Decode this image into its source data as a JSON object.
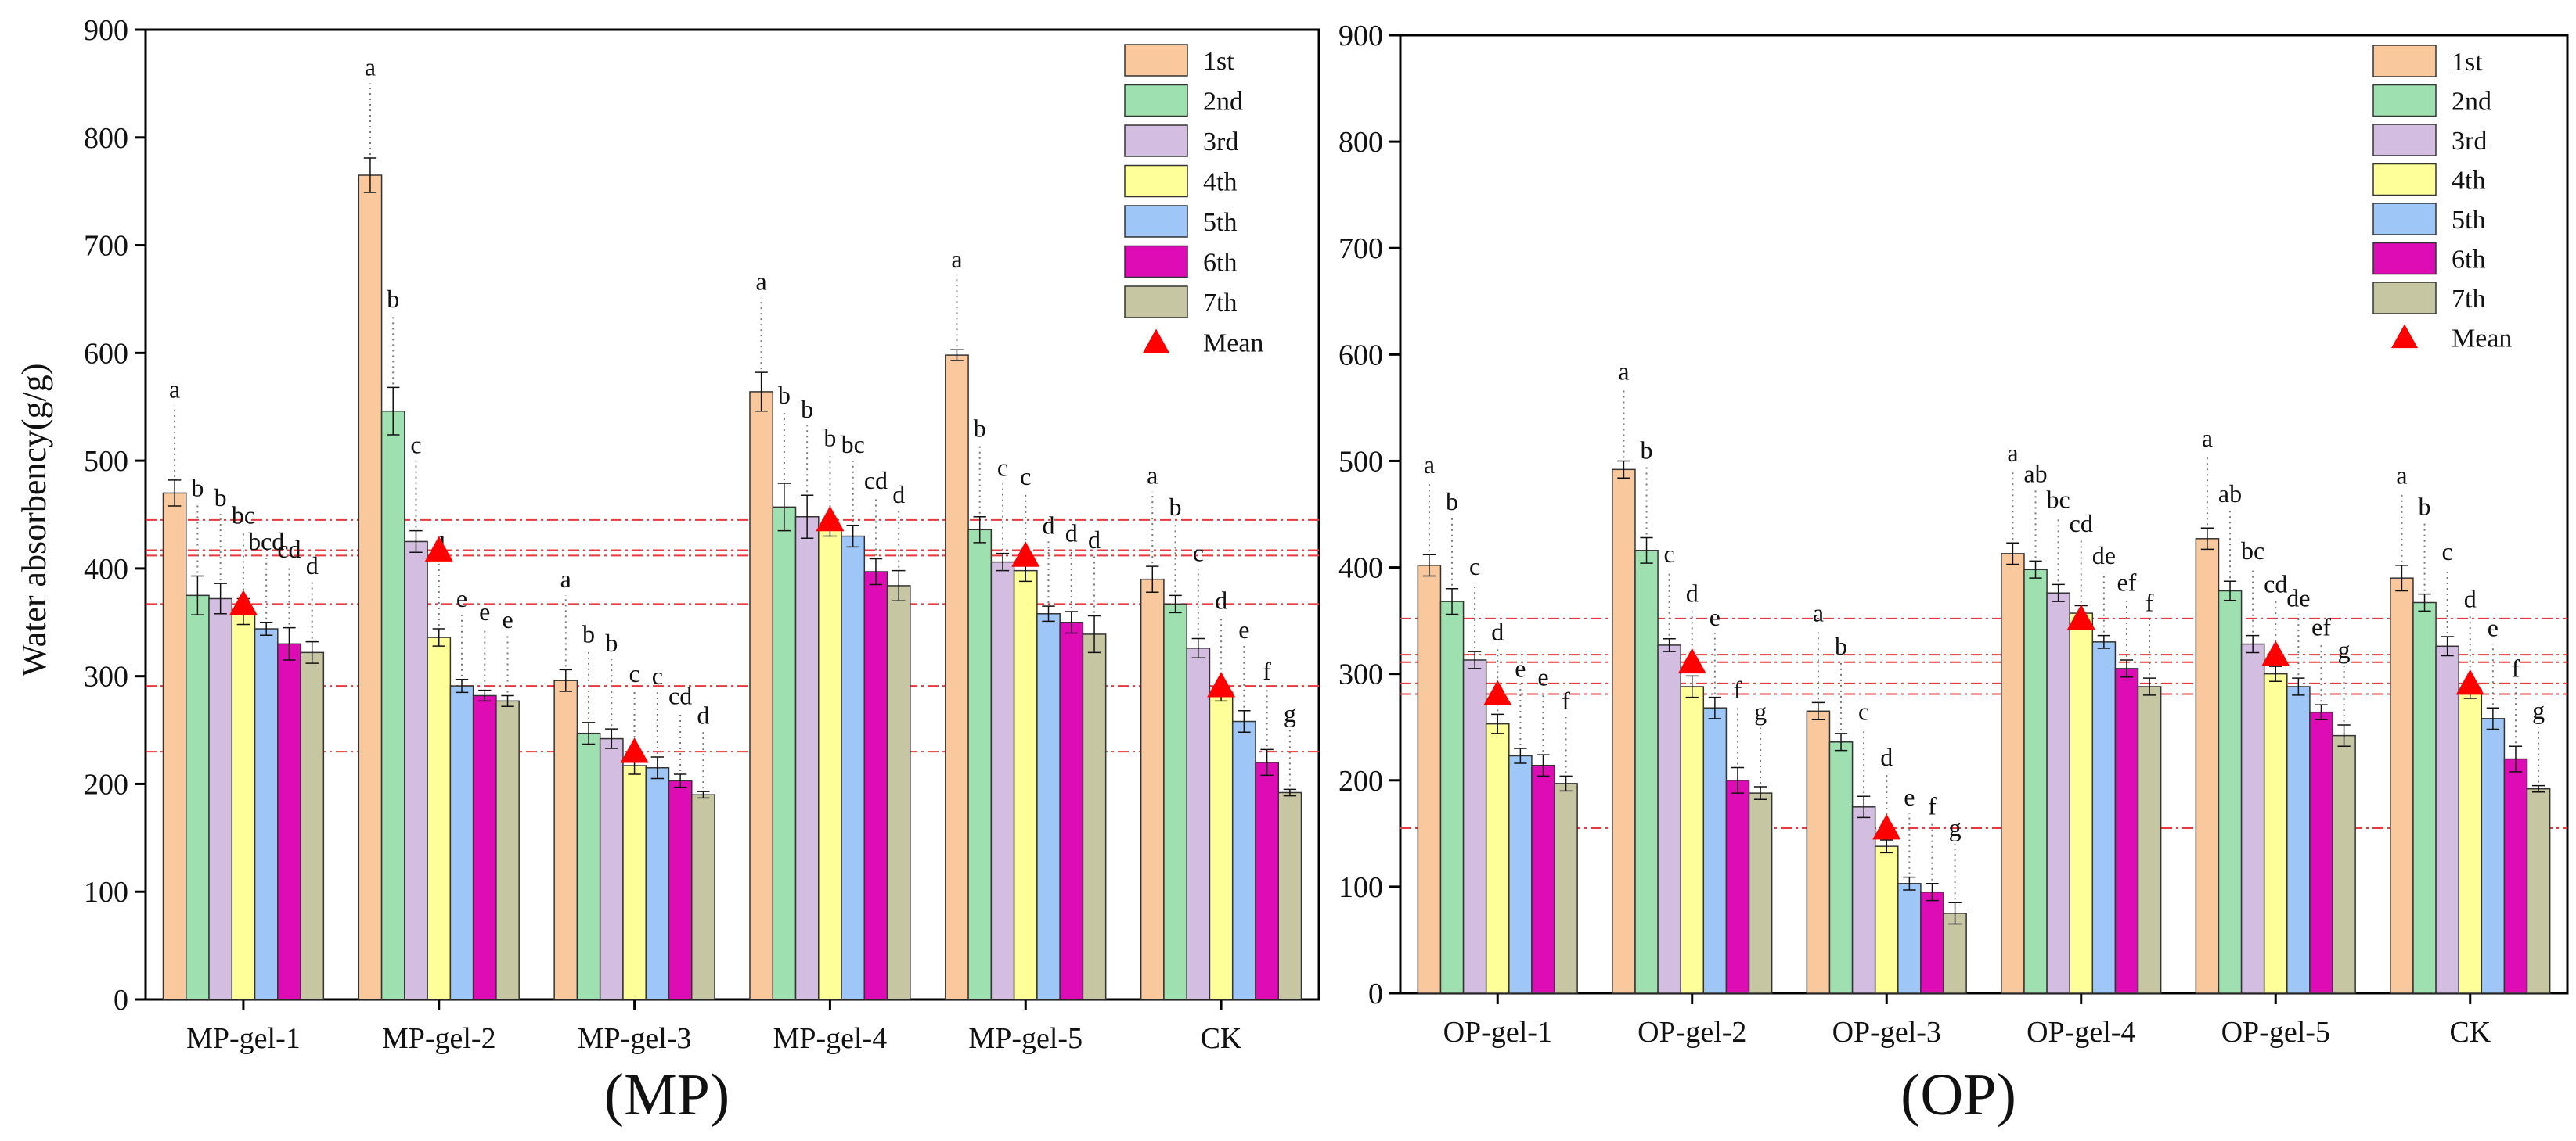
{
  "figure": {
    "y_axis_label": "Water absorbency(g/g)"
  },
  "styles": {
    "series_colors": [
      "#f9c99d",
      "#9fe0b0",
      "#d3bde0",
      "#ffff99",
      "#9ec7f7",
      "#dd0cb5",
      "#c6c6a2"
    ],
    "mean_color": "#ff0000",
    "mean_line_color": "#e8393f"
  },
  "chart_data": [
    {
      "type": "bar",
      "panel_label": "(MP)",
      "categories": [
        "MP-gel-1",
        "MP-gel-2",
        "MP-gel-3",
        "MP-gel-4",
        "MP-gel-5",
        "CK"
      ],
      "ylim": [
        0,
        900
      ],
      "yticks": [
        0,
        100,
        200,
        300,
        400,
        500,
        600,
        700,
        800,
        900
      ],
      "ylabel": "Water absorbency(g/g)",
      "legend_position": "top-right",
      "mean_label": "Mean",
      "series": [
        {
          "name": "1st",
          "values": [
            470,
            765,
            296,
            564,
            598,
            390
          ],
          "errors": [
            12,
            16,
            10,
            18,
            5,
            12
          ],
          "letters": [
            "a",
            "a",
            "a",
            "a",
            "a",
            "a"
          ]
        },
        {
          "name": "2nd",
          "values": [
            375,
            546,
            247,
            457,
            436,
            367
          ],
          "errors": [
            18,
            22,
            10,
            22,
            12,
            8
          ],
          "letters": [
            "b",
            "b",
            "b",
            "b",
            "b",
            "b"
          ]
        },
        {
          "name": "3rd",
          "values": [
            372,
            425,
            242,
            448,
            406,
            326
          ],
          "errors": [
            14,
            10,
            9,
            20,
            8,
            9
          ],
          "letters": [
            "b",
            "c",
            "b",
            "b",
            "c",
            "c"
          ]
        },
        {
          "name": "4th",
          "values": [
            360,
            336,
            217,
            437,
            398,
            285
          ],
          "errors": [
            12,
            8,
            8,
            7,
            10,
            8
          ],
          "letters": [
            "bc",
            "d",
            "c",
            "b",
            "c",
            "d"
          ]
        },
        {
          "name": "5th",
          "values": [
            344,
            291,
            215,
            430,
            358,
            258
          ],
          "errors": [
            6,
            6,
            10,
            10,
            7,
            10
          ],
          "letters": [
            "bcd",
            "e",
            "c",
            "bc",
            "d",
            "e"
          ]
        },
        {
          "name": "6th",
          "values": [
            330,
            282,
            203,
            397,
            350,
            220
          ],
          "errors": [
            15,
            5,
            6,
            12,
            10,
            12
          ],
          "letters": [
            "cd",
            "e",
            "cd",
            "cd",
            "d",
            "f"
          ]
        },
        {
          "name": "7th",
          "values": [
            322,
            277,
            190,
            384,
            339,
            192
          ],
          "errors": [
            10,
            5,
            3,
            14,
            17,
            3
          ],
          "letters": [
            "d",
            "e",
            "d",
            "d",
            "d",
            "g"
          ]
        }
      ],
      "means": [
        367,
        417,
        230,
        445,
        412,
        291
      ]
    },
    {
      "type": "bar",
      "panel_label": "(OP)",
      "categories": [
        "OP-gel-1",
        "OP-gel-2",
        "OP-gel-3",
        "OP-gel-4",
        "OP-gel-5",
        "CK"
      ],
      "ylim": [
        0,
        900
      ],
      "yticks": [
        0,
        100,
        200,
        300,
        400,
        500,
        600,
        700,
        800,
        900
      ],
      "ylabel": "",
      "legend_position": "top-right",
      "mean_label": "Mean",
      "series": [
        {
          "name": "1st",
          "values": [
            402,
            492,
            265,
            413,
            427,
            390
          ],
          "errors": [
            10,
            8,
            8,
            10,
            10,
            12
          ],
          "letters": [
            "a",
            "a",
            "a",
            "a",
            "a",
            "a"
          ]
        },
        {
          "name": "2nd",
          "values": [
            368,
            416,
            236,
            398,
            378,
            367
          ],
          "errors": [
            12,
            12,
            8,
            8,
            9,
            8
          ],
          "letters": [
            "b",
            "b",
            "b",
            "ab",
            "ab",
            "b"
          ]
        },
        {
          "name": "3rd",
          "values": [
            313,
            327,
            175,
            376,
            328,
            326
          ],
          "errors": [
            8,
            6,
            10,
            8,
            8,
            9
          ],
          "letters": [
            "c",
            "c",
            "c",
            "bc",
            "bc",
            "c"
          ]
        },
        {
          "name": "4th",
          "values": [
            253,
            288,
            138,
            357,
            300,
            285
          ],
          "errors": [
            9,
            10,
            6,
            7,
            7,
            8
          ],
          "letters": [
            "d",
            "d",
            "d",
            "cd",
            "cd",
            "d"
          ]
        },
        {
          "name": "5th",
          "values": [
            223,
            268,
            103,
            330,
            288,
            258
          ],
          "errors": [
            7,
            10,
            6,
            6,
            8,
            10
          ],
          "letters": [
            "e",
            "e",
            "e",
            "de",
            "de",
            "e"
          ]
        },
        {
          "name": "6th",
          "values": [
            214,
            200,
            95,
            305,
            264,
            220
          ],
          "errors": [
            10,
            12,
            8,
            8,
            7,
            12
          ],
          "letters": [
            "e",
            "f",
            "f",
            "ef",
            "ef",
            "f"
          ]
        },
        {
          "name": "7th",
          "values": [
            197,
            188,
            75,
            288,
            242,
            192
          ],
          "errors": [
            7,
            6,
            10,
            8,
            10,
            3
          ],
          "letters": [
            "f",
            "g",
            "g",
            "f",
            "g",
            "g"
          ]
        }
      ],
      "means": [
        281,
        311,
        155,
        352,
        318,
        291
      ]
    }
  ]
}
